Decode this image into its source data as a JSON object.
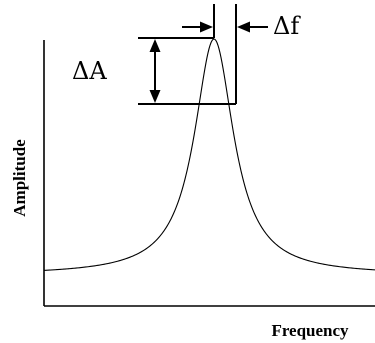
{
  "diagram": {
    "delta_amplitude_label": "ΔA",
    "delta_frequency_label": "Δf",
    "y_axis_label": "Amplitude",
    "x_axis_label": "Frequency",
    "curve": "resonance peak (Lorentzian)"
  }
}
